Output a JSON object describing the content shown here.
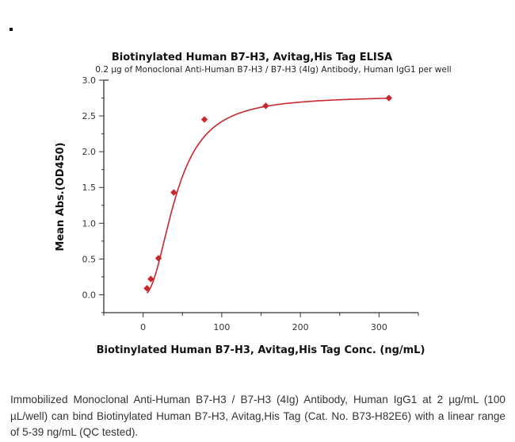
{
  "chart_data": {
    "type": "scatter",
    "title": "Biotinylated Human B7-H3, Avitag,His Tag ELISA",
    "subtitle": "0.2 µg of Monoclonal Anti-Human B7-H3 / B7-H3 (4Ig) Antibody, Human IgG1 per well",
    "xlabel": "Biotinylated Human B7-H3, Avitag,His Tag Conc. (ng/mL)",
    "ylabel": "Mean Abs.(OD450)",
    "xlim": [
      -50,
      350
    ],
    "ylim": [
      -0.25,
      3.0
    ],
    "xticks": [
      0,
      100,
      200,
      300
    ],
    "yticks": [
      "0.0",
      "0.5",
      "1.0",
      "1.5",
      "2.0",
      "2.5",
      "3.0"
    ],
    "grid": false,
    "fit": "4-parameter logistic curve",
    "series": [
      {
        "x": [
          4.88,
          9.77,
          19.5,
          39,
          78,
          156,
          312.5
        ],
        "y": [
          0.09,
          0.22,
          0.51,
          1.43,
          2.45,
          2.64,
          2.75
        ],
        "marker": "diamond",
        "color": "#c8282d"
      }
    ]
  },
  "caption": "Immobilized Monoclonal Anti-Human B7-H3 / B7-H3 (4Ig) Antibody, Human IgG1 at 2 µg/mL (100 µL/well) can bind Biotinylated Human B7-H3, Avitag,His Tag (Cat. No. B73-H82E6) with a linear range of 5-39 ng/mL (QC tested)."
}
